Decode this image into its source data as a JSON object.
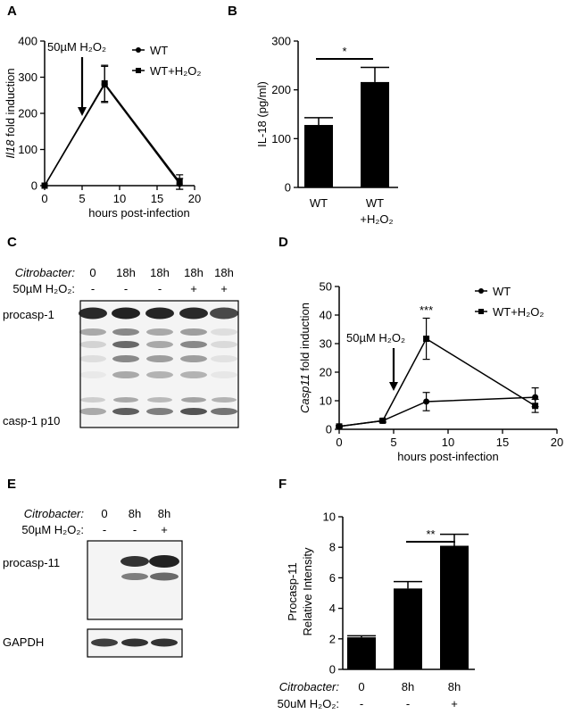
{
  "colors": {
    "ink": "#000000",
    "blot_background": "#f4f4f4",
    "band": "#1e1e1e"
  },
  "panels": {
    "A": {
      "letter": "A"
    },
    "B": {
      "letter": "B"
    },
    "C": {
      "letter": "C"
    },
    "D": {
      "letter": "D"
    },
    "E": {
      "letter": "E"
    },
    "F": {
      "letter": "F"
    }
  },
  "chart_data": [
    {
      "panel": "A",
      "type": "line",
      "ylabel_italic": "Il18",
      "ylabel_rest": " fold induction",
      "xlabel": "hours post-infection",
      "xlim": [
        0,
        20
      ],
      "ylim": [
        0,
        400
      ],
      "xticks": [
        0,
        5,
        10,
        15,
        20
      ],
      "yticks": [
        0,
        100,
        200,
        300,
        400
      ],
      "legend_position": "top-right",
      "annotation": {
        "label": "50µM H₂O₂",
        "arrow_x": 5
      },
      "series": [
        {
          "name": "WT",
          "marker": "circle",
          "x": [
            0,
            8,
            18
          ],
          "y": [
            0,
            280,
            5
          ],
          "err": [
            0,
            50,
            15
          ]
        },
        {
          "name": "WT+H₂O₂",
          "marker": "square",
          "x": [
            0,
            8,
            18
          ],
          "y": [
            0,
            283,
            10
          ],
          "err": [
            0,
            50,
            20
          ]
        }
      ]
    },
    {
      "panel": "B",
      "type": "bar",
      "ylabel": "IL-18 (pg/ml)",
      "ylim": [
        0,
        300
      ],
      "yticks": [
        0,
        100,
        200,
        300
      ],
      "categories": [
        {
          "line1": "WT",
          "line2": ""
        },
        {
          "line1": "WT",
          "line2": "+H₂O₂"
        }
      ],
      "values": [
        128,
        216
      ],
      "errors": [
        15,
        30
      ],
      "significance": "*"
    },
    {
      "panel": "D",
      "type": "line",
      "ylabel_italic": "Casp11",
      "ylabel_rest": " fold induction",
      "xlabel": "hours post-infection",
      "xlim": [
        0,
        20
      ],
      "ylim": [
        0,
        50
      ],
      "xticks": [
        0,
        5,
        10,
        15,
        20
      ],
      "yticks": [
        0,
        10,
        20,
        30,
        40,
        50
      ],
      "legend_position": "top-right",
      "annotation": {
        "label": "50µM H₂O₂",
        "arrow_x": 5
      },
      "significance": {
        "label": "***",
        "x": 8
      },
      "series": [
        {
          "name": "WT",
          "marker": "circle",
          "x": [
            0,
            4,
            8,
            18
          ],
          "y": [
            1,
            3,
            9.7,
            11.2
          ],
          "err": [
            0.3,
            0.5,
            3.2,
            3.3
          ]
        },
        {
          "name": "WT+H₂O₂",
          "marker": "square",
          "x": [
            0,
            4,
            8,
            18
          ],
          "y": [
            1,
            3,
            31.7,
            8.2
          ],
          "err": [
            0.3,
            0.5,
            7.2,
            2.3
          ]
        }
      ]
    },
    {
      "panel": "F",
      "type": "bar",
      "ylabel_lines": [
        "Procasp-11",
        "Relative Intensity"
      ],
      "ylim": [
        0,
        10
      ],
      "yticks": [
        0,
        2,
        4,
        6,
        8,
        10
      ],
      "categories": [
        "0",
        "8h",
        "8h"
      ],
      "values": [
        2.1,
        5.3,
        8.1
      ],
      "errors": [
        0.1,
        0.45,
        0.75
      ],
      "significance": "**",
      "condition_rows": [
        {
          "label": "Citrobacter:",
          "italic": true,
          "values": [
            "0",
            "8h",
            "8h"
          ]
        },
        {
          "label": "50uM H₂O₂:",
          "italic": false,
          "values": [
            "-",
            "-",
            "+"
          ]
        }
      ]
    }
  ],
  "blots": {
    "C": {
      "condition_rows": [
        {
          "label": "Citrobacter:",
          "italic": true,
          "values": [
            "0",
            "18h",
            "18h",
            "18h",
            "18h"
          ]
        },
        {
          "label": "50µM H₂O₂:",
          "italic": false,
          "values": [
            "-",
            "-",
            "-",
            "+",
            "+"
          ]
        }
      ],
      "band_labels": [
        "procasp-1",
        "casp-1 p10"
      ]
    },
    "E": {
      "condition_rows": [
        {
          "label": "Citrobacter:",
          "italic": true,
          "values": [
            "0",
            "8h",
            "8h"
          ]
        },
        {
          "label": "50µM H₂O₂:",
          "italic": false,
          "values": [
            "-",
            "-",
            "+"
          ]
        }
      ],
      "band_labels": [
        "procasp-11",
        "GAPDH"
      ]
    }
  }
}
